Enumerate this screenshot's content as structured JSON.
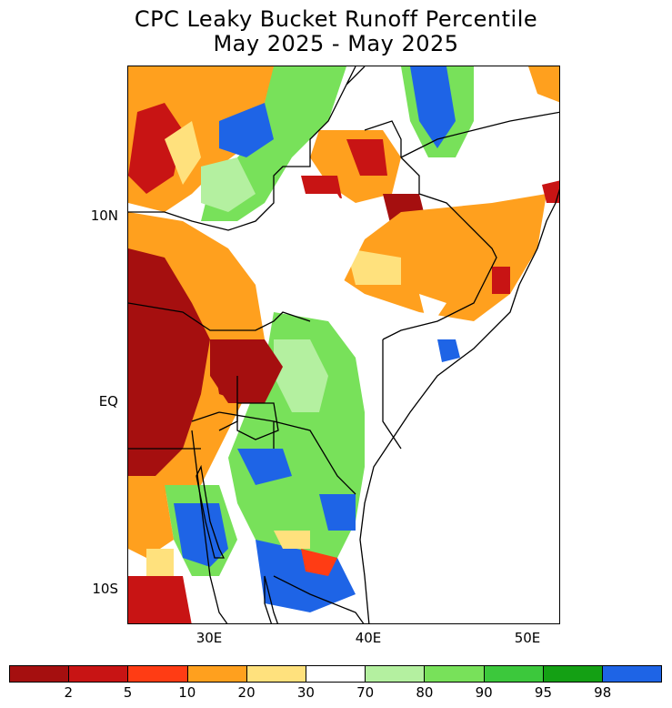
{
  "title_line1": "CPC Leaky Bucket Runoff Percentile",
  "title_line2": "May 2025 - May 2025",
  "lat_labels": [
    "10N",
    "EQ",
    "10S"
  ],
  "lon_labels": [
    "30E",
    "40E",
    "50E"
  ],
  "colorbar": {
    "colors": [
      "#a50f0f",
      "#c81414",
      "#ff3c14",
      "#ffa01e",
      "#ffe17d",
      "#ffffff",
      "#b4f0a0",
      "#78e15a",
      "#3cc83c",
      "#14a014",
      "#1e64e6"
    ],
    "labels": [
      "2",
      "5",
      "10",
      "20",
      "30",
      "70",
      "80",
      "90",
      "95",
      "98"
    ]
  }
}
